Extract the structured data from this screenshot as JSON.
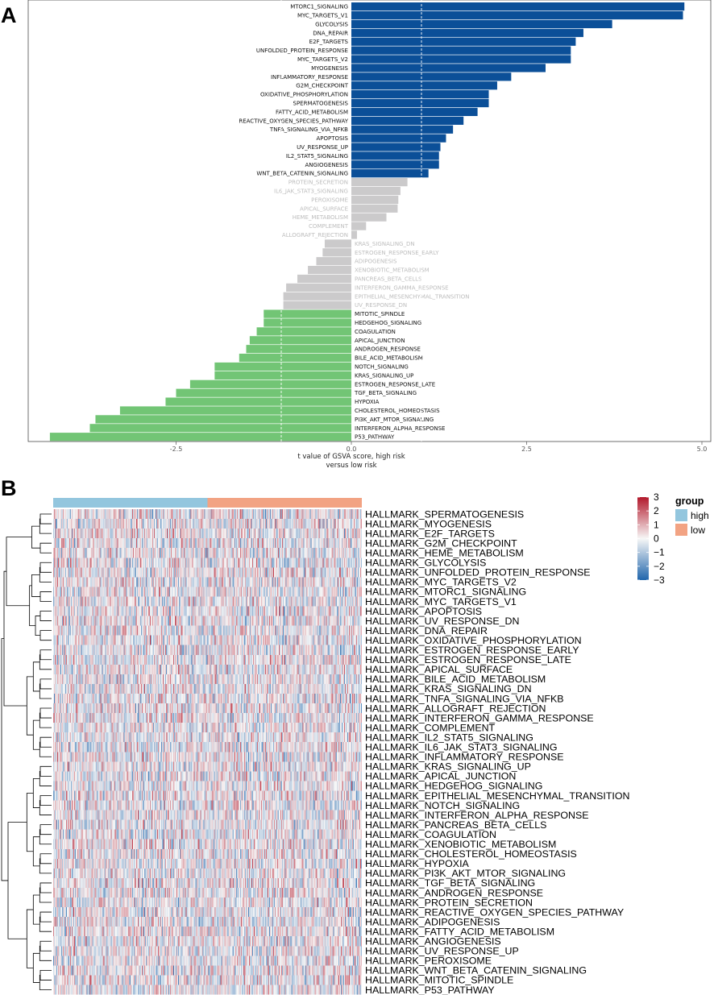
{
  "panels": {
    "a_label": "A",
    "b_label": "B"
  },
  "chart_data": [
    {
      "type": "bar",
      "orientation": "horizontal",
      "title": "",
      "xlabel_line1": "t value of GSVA score, high risk",
      "xlabel_line2": "versus low risk",
      "xlim": [
        -4.5,
        5.0
      ],
      "xticks": [
        -2.5,
        0.0,
        2.5,
        5.0
      ],
      "xtick_labels": [
        "-2.5",
        "0.0",
        "2.5",
        "5.0"
      ],
      "reference_lines": [
        -1,
        1
      ],
      "colors": {
        "up": "#0b4f98",
        "ns": "#cbcacb",
        "down": "#72c575"
      },
      "categories": [
        "MTORC1_SIGNALING",
        "MYC_TARGETS_V1",
        "GLYCOLYSIS",
        "DNA_REPAIR",
        "E2F_TARGETS",
        "UNFOLDED_PROTEIN_RESPONSE",
        "MYC_TARGETS_V2",
        "MYOGENESIS",
        "INFLAMMATORY_RESPONSE",
        "G2M_CHECKPOINT",
        "OXIDATIVE_PHOSPHORYLATION",
        "SPERMATOGENESIS",
        "FATTY_ACID_METABOLISM",
        "REACTIVE_OXYGEN_SPECIES_PATHWAY",
        "TNFA_SIGNALING_VIA_NFKB",
        "APOPTOSIS",
        "UV_RESPONSE_UP",
        "IL2_STAT5_SIGNALING",
        "ANGIOGENESIS",
        "WNT_BETA_CATENIN_SIGNALING",
        "PROTEIN_SECRETION",
        "IL6_JAK_STAT3_SIGNALING",
        "PEROXISOME",
        "APICAL_SURFACE",
        "HEME_METABOLISM",
        "COMPLEMENT",
        "ALLOGRAFT_REJECTION",
        "KRAS_SIGNALING_DN",
        "ESTROGEN_RESPONSE_EARLY",
        "ADIPOGENESIS",
        "XENOBIOTIC_METABOLISM",
        "PANCREAS_BETA_CELLS",
        "INTERFERON_GAMMA_RESPONSE",
        "EPITHELIAL_MESENCHYMAL_TRANSITION",
        "UV_RESPONSE_DN",
        "MITOTIC_SPINDLE",
        "HEDGEHOG_SIGNALING",
        "COAGULATION",
        "APICAL_JUNCTION",
        "ANDROGEN_RESPONSE",
        "BILE_ACID_METABOLISM",
        "NOTCH_SIGNALING",
        "KRAS_SIGNALING_UP",
        "ESTROGEN_RESPONSE_LATE",
        "TGF_BETA_SIGNALING",
        "HYPOXIA",
        "CHOLESTEROL_HOMEOSTASIS",
        "PI3K_AKT_MTOR_SIGNALING",
        "INTERFERON_ALPHA_RESPONSE",
        "P53_PATHWAY"
      ],
      "values": [
        4.75,
        4.73,
        3.72,
        3.31,
        3.2,
        3.13,
        3.13,
        2.77,
        2.28,
        2.08,
        1.96,
        1.96,
        1.8,
        1.6,
        1.45,
        1.35,
        1.27,
        1.25,
        1.25,
        1.1,
        0.8,
        0.7,
        0.67,
        0.66,
        0.5,
        0.21,
        0.08,
        -0.38,
        -0.41,
        -0.5,
        -0.62,
        -0.77,
        -0.93,
        -0.97,
        -0.97,
        -1.25,
        -1.25,
        -1.35,
        -1.45,
        -1.5,
        -1.6,
        -1.95,
        -1.95,
        -2.3,
        -2.5,
        -2.65,
        -3.3,
        -3.65,
        -3.73,
        -4.3
      ]
    },
    {
      "type": "heatmap",
      "legend_title": "group",
      "groups": [
        {
          "name": "high",
          "color": "#93c6de"
        },
        {
          "name": "low",
          "color": "#f2a383"
        }
      ],
      "color_scale": {
        "min": -3,
        "max": 3,
        "ticks": [
          "3",
          "2",
          "1",
          "0",
          "−1",
          "−2",
          "−3"
        ],
        "low_color": "#2166ac",
        "mid_color": "#f7f7f7",
        "high_color": "#b2182b"
      },
      "rows": [
        "HALLMARK_SPERMATOGENESIS",
        "HALLMARK_MYOGENESIS",
        "HALLMARK_E2F_TARGETS",
        "HALLMARK_G2M_CHECKPOINT",
        "HALLMARK_HEME_METABOLISM",
        "HALLMARK_GLYCOLYSIS",
        "HALLMARK_UNFOLDED_PROTEIN_RESPONSE",
        "HALLMARK_MYC_TARGETS_V2",
        "HALLMARK_MTORC1_SIGNALING",
        "HALLMARK_MYC_TARGETS_V1",
        "HALLMARK_APOPTOSIS",
        "HALLMARK_UV_RESPONSE_DN",
        "HALLMARK_DNA_REPAIR",
        "HALLMARK_OXIDATIVE_PHOSPHORYLATION",
        "HALLMARK_ESTROGEN_RESPONSE_EARLY",
        "HALLMARK_ESTROGEN_RESPONSE_LATE",
        "HALLMARK_APICAL_SURFACE",
        "HALLMARK_BILE_ACID_METABOLISM",
        "HALLMARK_KRAS_SIGNALING_DN",
        "HALLMARK_TNFA_SIGNALING_VIA_NFKB",
        "HALLMARK_ALLOGRAFT_REJECTION",
        "HALLMARK_INTERFERON_GAMMA_RESPONSE",
        "HALLMARK_COMPLEMENT",
        "HALLMARK_IL2_STAT5_SIGNALING",
        "HALLMARK_IL6_JAK_STAT3_SIGNALING",
        "HALLMARK_INFLAMMATORY_RESPONSE",
        "HALLMARK_KRAS_SIGNALING_UP",
        "HALLMARK_APICAL_JUNCTION",
        "HALLMARK_HEDGEHOG_SIGNALING",
        "HALLMARK_EPITHELIAL_MESENCHYMAL_TRANSITION",
        "HALLMARK_NOTCH_SIGNALING",
        "HALLMARK_INTERFERON_ALPHA_RESPONSE",
        "HALLMARK_PANCREAS_BETA_CELLS",
        "HALLMARK_COAGULATION",
        "HALLMARK_XENOBIOTIC_METABOLISM",
        "HALLMARK_CHOLESTEROL_HOMEOSTASIS",
        "HALLMARK_HYPOXIA",
        "HALLMARK_PI3K_AKT_MTOR_SIGNALING",
        "HALLMARK_TGF_BETA_SIGNALING",
        "HALLMARK_ANDROGEN_RESPONSE",
        "HALLMARK_PROTEIN_SECRETION",
        "HALLMARK_REACTIVE_OXYGEN_SPECIES_PATHWAY",
        "HALLMARK_ADIPOGENESIS",
        "HALLMARK_FATTY_ACID_METABOLISM",
        "HALLMARK_ANGIOGENESIS",
        "HALLMARK_UV_RESPONSE_UP",
        "HALLMARK_PEROXISOME",
        "HALLMARK_WNT_BETA_CATENIN_SIGNALING",
        "HALLMARK_MITOTIC_SPINDLE",
        "HALLMARK_P53_PATHWAY"
      ],
      "n_samples": 380,
      "n_high": 190,
      "dendrogram": "row",
      "values_note": "per-sample scores not readable; rendered as noise"
    }
  ]
}
